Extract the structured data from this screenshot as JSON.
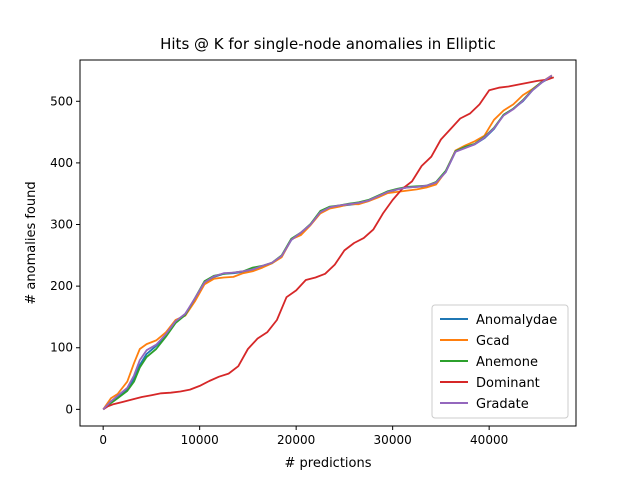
{
  "chart_data": {
    "type": "line",
    "title": "Hits @ K for single-node anomalies in Elliptic",
    "xlabel": "# predictions",
    "ylabel": "# anomalies found",
    "xlim": [
      -2400,
      49000
    ],
    "ylim": [
      -27,
      567
    ],
    "xticks": [
      0,
      10000,
      20000,
      30000,
      40000
    ],
    "yticks": [
      0,
      100,
      200,
      300,
      400,
      500
    ],
    "grid": false,
    "legend_position": "lower-right",
    "series": [
      {
        "name": "Anomalydae",
        "color": "#1f77b4",
        "x": [
          0,
          800,
          1500,
          2500,
          3200,
          3800,
          4500,
          5500,
          6500,
          7500,
          8500,
          9500,
          10500,
          11500,
          12500,
          13500,
          14500,
          15500,
          16500,
          17500,
          18500,
          19500,
          20500,
          21500,
          22500,
          23500,
          24500,
          25500,
          26500,
          27500,
          28500,
          29500,
          30500,
          31500,
          32500,
          33500,
          34500,
          35500,
          36500,
          37500,
          38500,
          39500,
          40500,
          41500,
          42500,
          43500,
          44500,
          45500,
          46500
        ],
        "y": [
          0,
          12,
          20,
          32,
          50,
          72,
          90,
          103,
          120,
          142,
          155,
          178,
          205,
          215,
          220,
          221,
          223,
          226,
          232,
          237,
          248,
          275,
          286,
          300,
          320,
          327,
          330,
          332,
          334,
          338,
          345,
          352,
          357,
          360,
          361,
          362,
          368,
          385,
          418,
          425,
          430,
          440,
          455,
          478,
          488,
          500,
          518,
          531,
          540
        ]
      },
      {
        "name": "Gcad",
        "color": "#ff7f0e",
        "x": [
          0,
          800,
          1500,
          2500,
          3200,
          3800,
          4500,
          5500,
          6500,
          7500,
          8500,
          9500,
          10500,
          11500,
          12500,
          13500,
          14500,
          15500,
          16500,
          17500,
          18500,
          19500,
          20500,
          21500,
          22500,
          23500,
          24500,
          25500,
          26500,
          27500,
          28500,
          29500,
          30500,
          31500,
          32500,
          33500,
          34500,
          35500,
          36500,
          37500,
          38500,
          39500,
          40500,
          41500,
          42500,
          43500,
          44500,
          45500,
          46500
        ],
        "y": [
          0,
          18,
          25,
          45,
          75,
          98,
          106,
          112,
          125,
          145,
          152,
          175,
          203,
          212,
          214,
          215,
          221,
          224,
          230,
          237,
          247,
          276,
          283,
          299,
          318,
          326,
          329,
          333,
          333,
          338,
          344,
          351,
          353,
          355,
          357,
          360,
          365,
          386,
          420,
          428,
          435,
          444,
          470,
          485,
          495,
          510,
          520,
          532,
          542
        ]
      },
      {
        "name": "Anemone",
        "color": "#2ca02c",
        "x": [
          0,
          800,
          1500,
          2500,
          3200,
          3800,
          4500,
          5500,
          6500,
          7500,
          8500,
          9500,
          10500,
          11500,
          12500,
          13500,
          14500,
          15500,
          16500,
          17500,
          18500,
          19500,
          20500,
          21500,
          22500,
          23500,
          24500,
          25500,
          26500,
          27500,
          28500,
          29500,
          30500,
          31500,
          32500,
          33500,
          34500,
          35500,
          36500,
          37500,
          38500,
          39500,
          40500,
          41500,
          42500,
          43500,
          44500,
          45500,
          46500
        ],
        "y": [
          0,
          10,
          18,
          30,
          45,
          68,
          85,
          98,
          118,
          140,
          153,
          180,
          208,
          217,
          220,
          222,
          224,
          230,
          233,
          238,
          250,
          277,
          287,
          301,
          322,
          329,
          331,
          334,
          336,
          340,
          347,
          354,
          358,
          361,
          362,
          363,
          369,
          387,
          419,
          426,
          431,
          442,
          457,
          478,
          488,
          502,
          519,
          532,
          540
        ]
      },
      {
        "name": "Dominant",
        "color": "#d62728",
        "x": [
          0,
          500,
          1000,
          2000,
          3000,
          4000,
          5000,
          6000,
          7000,
          8000,
          9000,
          10000,
          11000,
          12000,
          13000,
          14000,
          15000,
          16000,
          17000,
          18000,
          19000,
          20000,
          21000,
          22000,
          23000,
          24000,
          25000,
          26000,
          27000,
          28000,
          29000,
          30000,
          31000,
          32000,
          33000,
          34000,
          35000,
          36000,
          37000,
          38000,
          39000,
          40000,
          41000,
          42000,
          43000,
          44000,
          45000,
          46000,
          46700
        ],
        "y": [
          0,
          5,
          8,
          12,
          16,
          20,
          23,
          26,
          27,
          29,
          32,
          38,
          46,
          53,
          58,
          70,
          98,
          115,
          125,
          145,
          182,
          193,
          210,
          214,
          220,
          235,
          258,
          270,
          278,
          292,
          318,
          340,
          358,
          370,
          395,
          410,
          438,
          455,
          472,
          480,
          495,
          518,
          522,
          524,
          527,
          530,
          533,
          535,
          539
        ]
      },
      {
        "name": "Gradate",
        "color": "#9467bd",
        "x": [
          0,
          800,
          1500,
          2500,
          3200,
          3800,
          4500,
          5500,
          6500,
          7500,
          8500,
          9500,
          10500,
          11500,
          12500,
          13500,
          14500,
          15500,
          16500,
          17500,
          18500,
          19500,
          20500,
          21500,
          22500,
          23500,
          24500,
          25500,
          26500,
          27500,
          28500,
          29500,
          30500,
          31500,
          32500,
          33500,
          34500,
          35500,
          36500,
          37500,
          38500,
          39500,
          40500,
          41500,
          42500,
          43500,
          44500,
          45500,
          46500
        ],
        "y": [
          0,
          13,
          22,
          35,
          55,
          80,
          96,
          105,
          122,
          143,
          155,
          180,
          206,
          216,
          221,
          222,
          224,
          227,
          233,
          238,
          249,
          275,
          287,
          300,
          320,
          328,
          331,
          333,
          335,
          339,
          346,
          353,
          357,
          360,
          361,
          363,
          368,
          385,
          418,
          424,
          430,
          441,
          456,
          477,
          487,
          501,
          518,
          531,
          542
        ]
      }
    ]
  }
}
